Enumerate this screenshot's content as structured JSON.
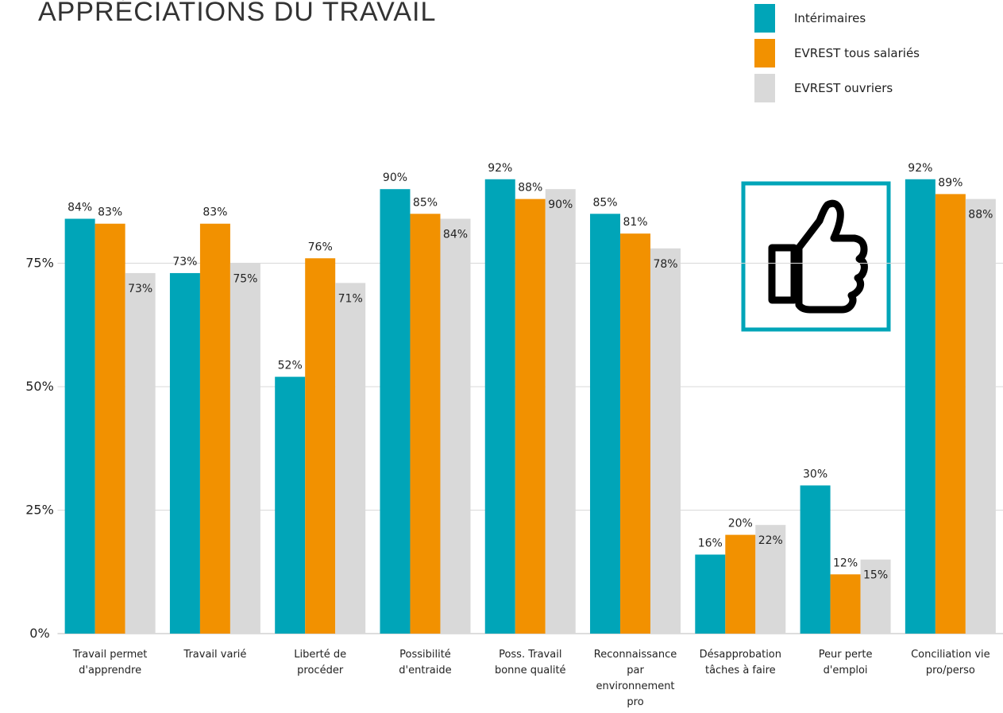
{
  "chart_data": {
    "type": "bar",
    "title": "APPRÉCIATIONS DU TRAVAIL",
    "categories": [
      "Travail permet\nd'apprendre",
      "Travail varié",
      "Liberté de\nprocéder",
      "Possibilité\nd'entraide",
      "Poss. Travail\nbonne qualité",
      "Reconnaissance\npar\nenvironnement\npro",
      "Désapprobation\ntâches à faire",
      "Peur perte\nd'emploi",
      "Conciliation vie\npro/perso"
    ],
    "series": [
      {
        "name": "Intérimaires",
        "color": "#00a5b8",
        "values": [
          84,
          73,
          52,
          90,
          92,
          85,
          16,
          30,
          92
        ],
        "value_labels": [
          "84%",
          "73%",
          "52%",
          "90%",
          "92%",
          "85%",
          "16%",
          "30%",
          "92%"
        ]
      },
      {
        "name": "EVREST tous salariés",
        "color": "#f29100",
        "values": [
          83,
          83,
          76,
          85,
          88,
          81,
          20,
          12,
          89
        ],
        "value_labels": [
          "83%",
          "83%",
          "76%",
          "85%",
          "88%",
          "81%",
          "20%",
          "12%",
          "89%"
        ]
      },
      {
        "name": "EVREST ouvriers",
        "color": "#d9d9d9",
        "values": [
          73,
          75,
          71,
          84,
          90,
          78,
          22,
          15,
          88
        ],
        "value_labels": [
          "73%",
          "75%",
          "71%",
          "84%",
          "90%",
          "78%",
          "22%",
          "15%",
          "88%"
        ]
      }
    ],
    "ylim": [
      0,
      100
    ],
    "yticks": [
      {
        "value": 0,
        "label": "0%"
      },
      {
        "value": 25,
        "label": "25%"
      },
      {
        "value": 50,
        "label": "50%"
      },
      {
        "value": 75,
        "label": "75%"
      }
    ],
    "grid": true,
    "legend": "top-right"
  }
}
